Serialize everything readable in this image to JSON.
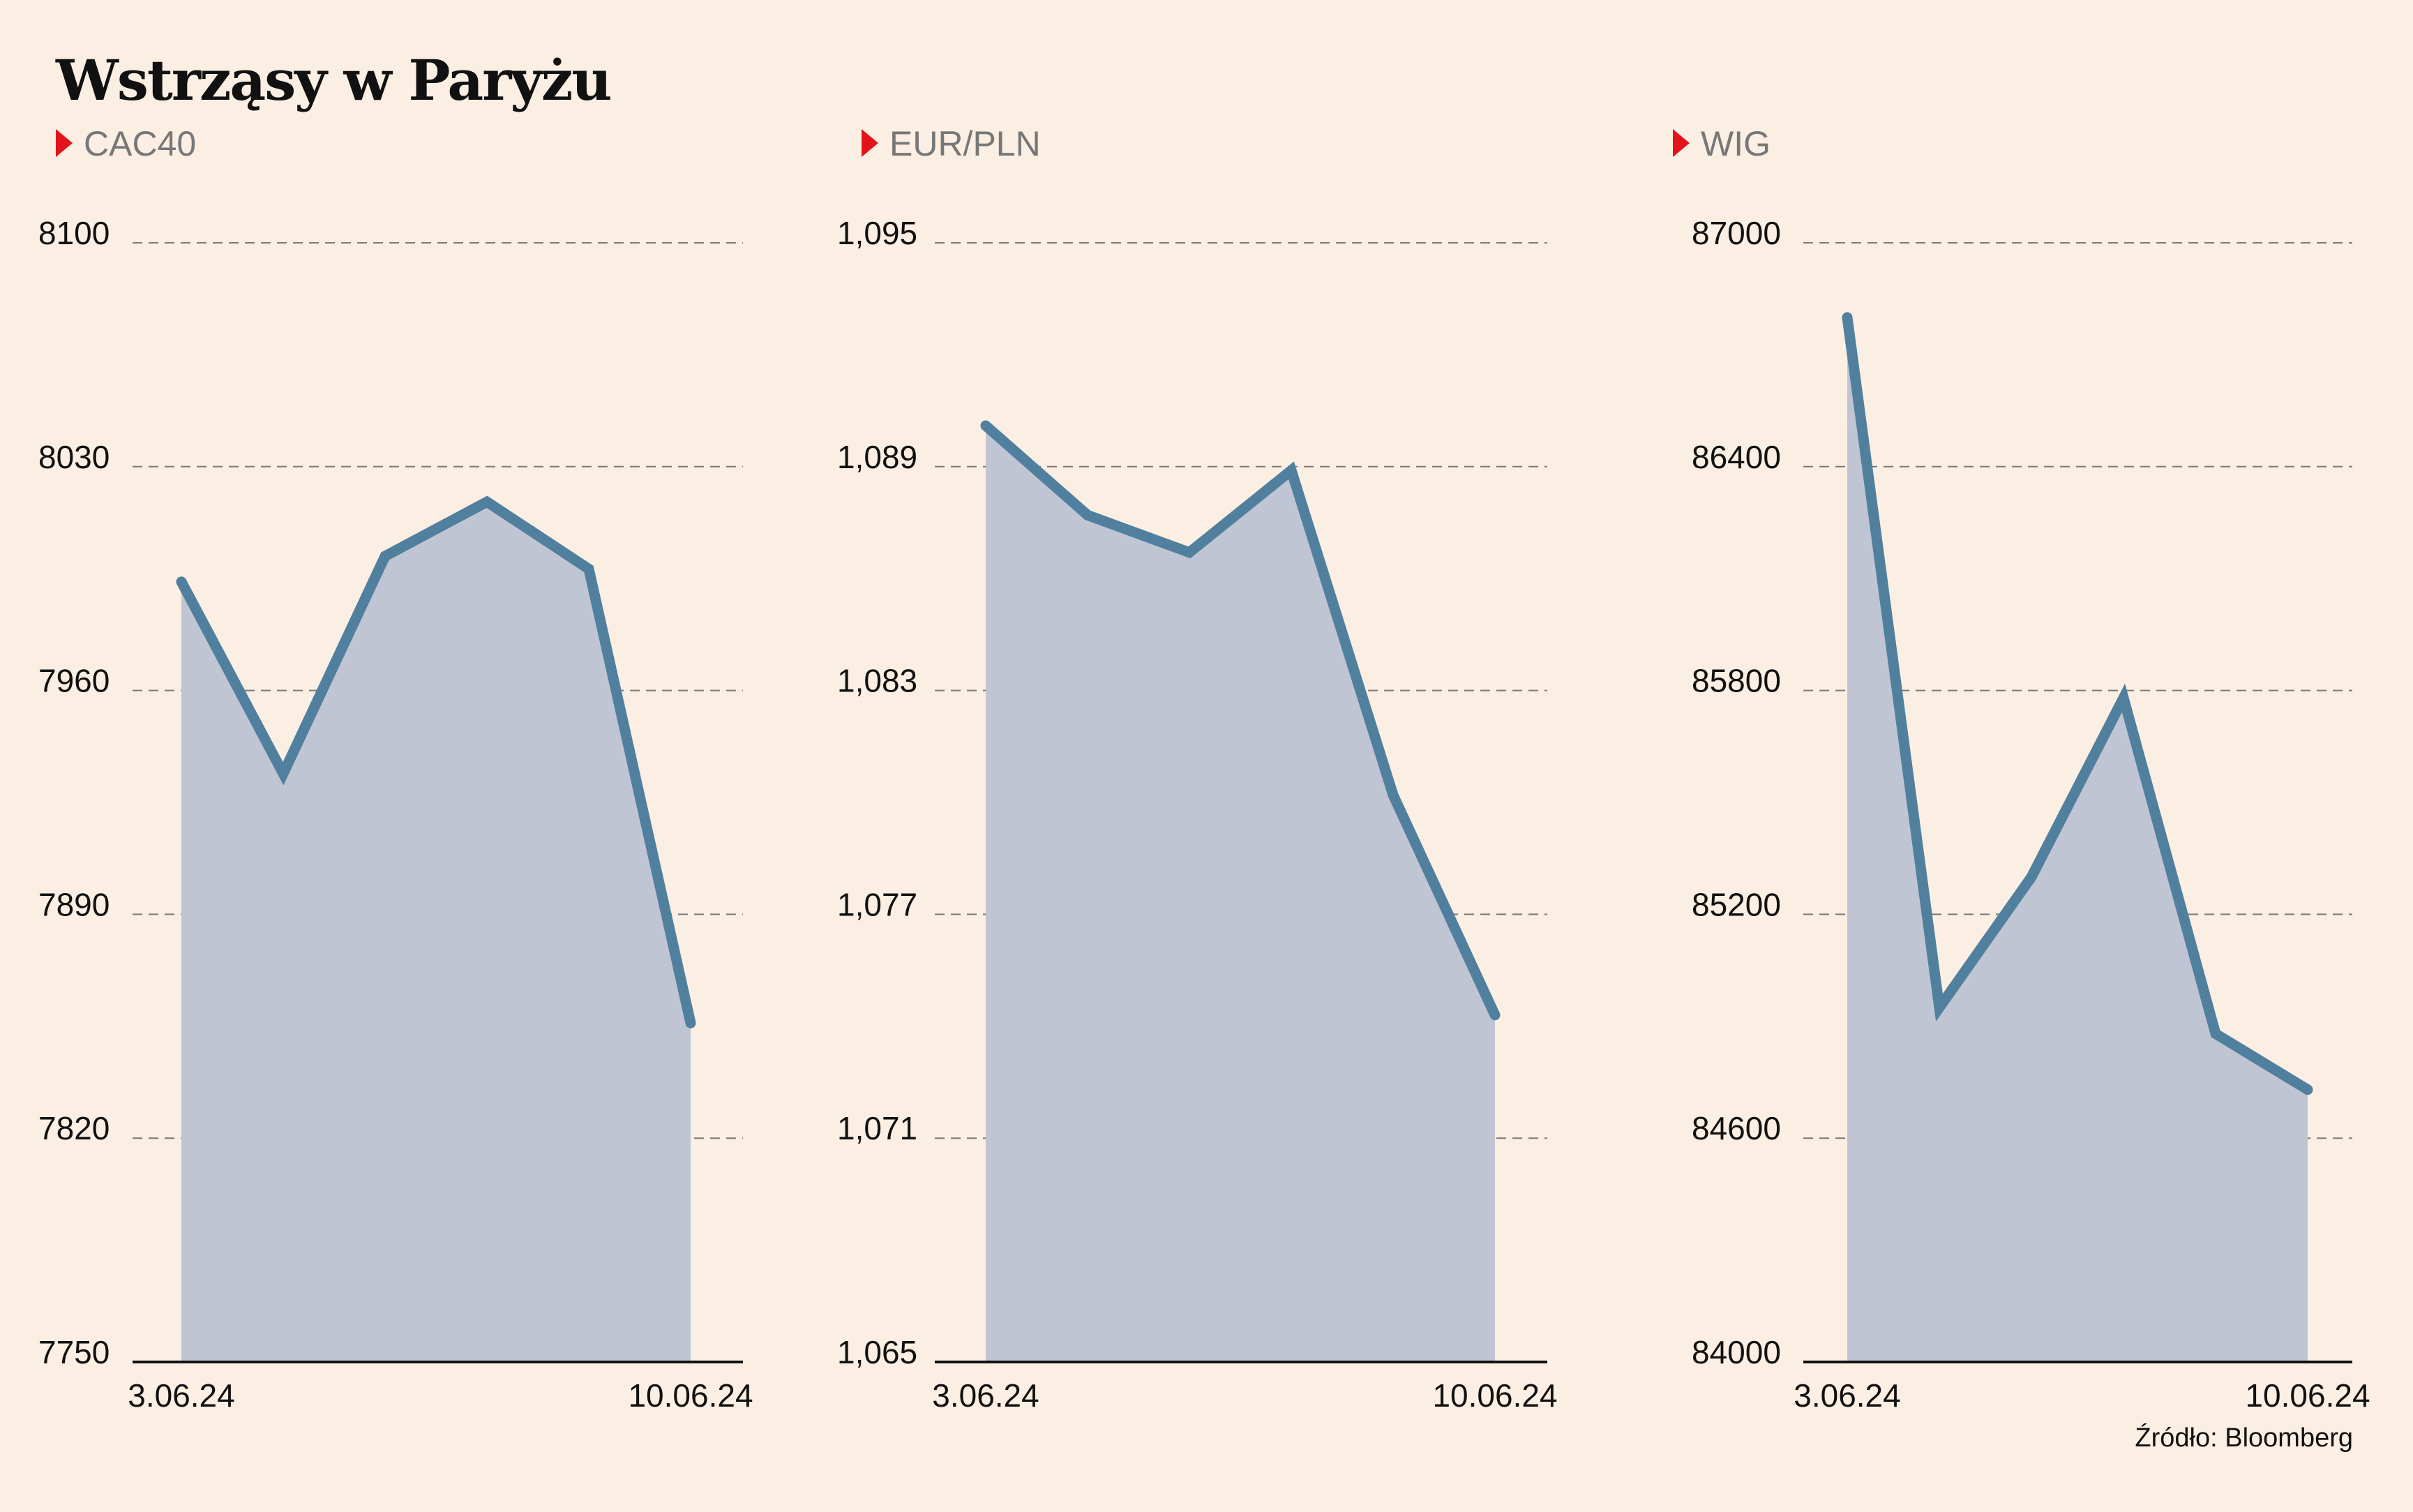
{
  "title": "Wstrząsy w Paryżu",
  "source": "Źródło: Bloomberg",
  "colors": {
    "background": "#fbeee2",
    "line": "#50809e",
    "area": "#c0c5d4",
    "marker": "#e3131b",
    "grid": "#7a7a7a",
    "axis": "#111111"
  },
  "chart_data": [
    {
      "type": "area",
      "label": "CAC40",
      "x": [
        "3.06.24",
        "4.06.24",
        "5.06.24",
        "6.06.24",
        "7.06.24",
        "10.06.24"
      ],
      "y": [
        7994,
        7934,
        8002,
        8019,
        7998,
        7856
      ],
      "y_ticks": [
        "8100",
        "8030",
        "7960",
        "7890",
        "7820",
        "7750"
      ],
      "x_tick_labels": [
        "3.06.24",
        "10.06.24"
      ],
      "ylim": [
        7750,
        8100
      ],
      "grid": true
    },
    {
      "type": "area",
      "label": "EUR/PLN",
      "x": [
        "3.06.24",
        "4.06.24",
        "5.06.24",
        "6.06.24",
        "7.06.24",
        "10.06.24"
      ],
      "y": [
        1.0901,
        1.0877,
        1.0867,
        1.0889,
        1.0802,
        1.0743
      ],
      "y_ticks": [
        "1,095",
        "1,089",
        "1,083",
        "1,077",
        "1,071",
        "1,065"
      ],
      "x_tick_labels": [
        "3.06.24",
        "10.06.24"
      ],
      "ylim": [
        1.065,
        1.095
      ],
      "grid": true
    },
    {
      "type": "area",
      "label": "WIG",
      "x": [
        "3.06.24",
        "4.06.24",
        "5.06.24",
        "6.06.24",
        "7.06.24",
        "10.06.24"
      ],
      "y": [
        86800,
        84950,
        85300,
        85780,
        84880,
        84730
      ],
      "y_ticks": [
        "87000",
        "86400",
        "85800",
        "85200",
        "84600",
        "84000"
      ],
      "x_tick_labels": [
        "3.06.24",
        "10.06.24"
      ],
      "ylim": [
        84000,
        87000
      ],
      "grid": true
    }
  ]
}
